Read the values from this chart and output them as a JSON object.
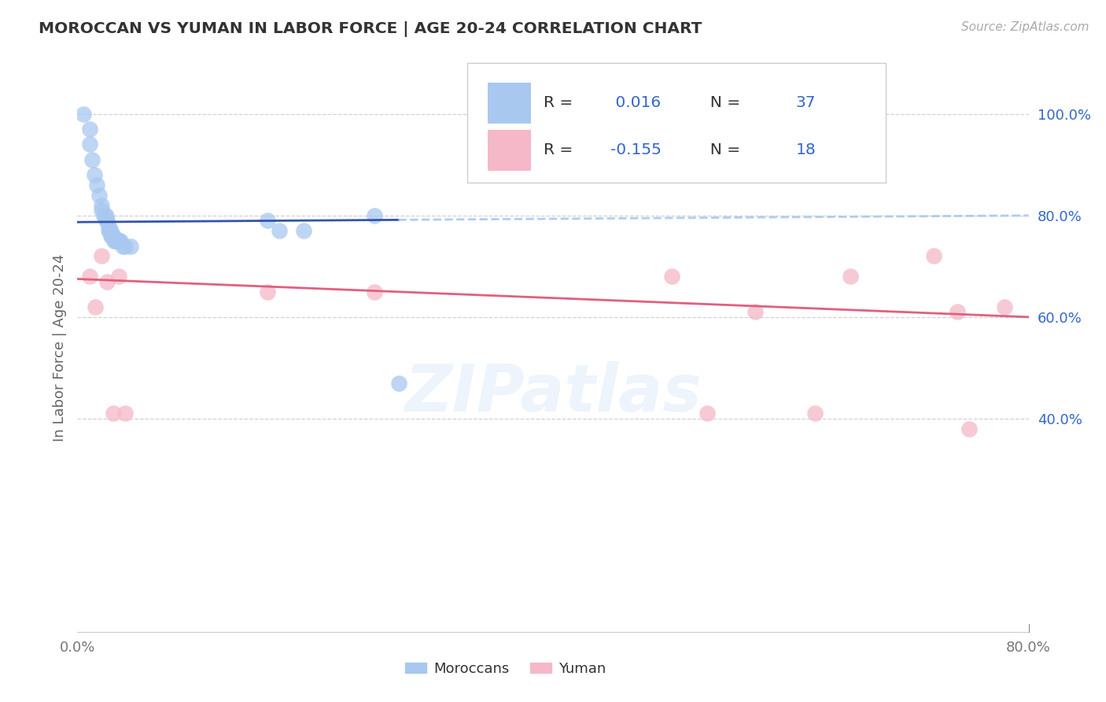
{
  "title": "MOROCCAN VS YUMAN IN LABOR FORCE | AGE 20-24 CORRELATION CHART",
  "source_text": "Source: ZipAtlas.com",
  "ylabel": "In Labor Force | Age 20-24",
  "xlim": [
    0.0,
    0.8
  ],
  "ylim": [
    -0.02,
    1.1
  ],
  "x_ticks": [
    0.0,
    0.8
  ],
  "x_tick_labels": [
    "0.0%",
    "80.0%"
  ],
  "y_ticks": [
    0.4,
    0.6,
    0.8,
    1.0
  ],
  "y_tick_labels": [
    "40.0%",
    "60.0%",
    "80.0%",
    "100.0%"
  ],
  "moroccan_x": [
    0.005,
    0.01,
    0.01,
    0.012,
    0.014,
    0.016,
    0.018,
    0.02,
    0.02,
    0.022,
    0.023,
    0.024,
    0.024,
    0.025,
    0.026,
    0.026,
    0.027,
    0.028,
    0.028,
    0.029,
    0.03,
    0.03,
    0.031,
    0.032,
    0.033,
    0.034,
    0.035,
    0.035,
    0.036,
    0.038,
    0.04,
    0.045,
    0.16,
    0.17,
    0.19,
    0.25,
    0.27
  ],
  "moroccan_y": [
    1.0,
    0.97,
    0.94,
    0.91,
    0.88,
    0.86,
    0.84,
    0.82,
    0.81,
    0.8,
    0.8,
    0.8,
    0.79,
    0.79,
    0.78,
    0.77,
    0.77,
    0.77,
    0.76,
    0.76,
    0.76,
    0.76,
    0.75,
    0.75,
    0.75,
    0.75,
    0.75,
    0.75,
    0.75,
    0.74,
    0.74,
    0.74,
    0.79,
    0.77,
    0.77,
    0.8,
    0.47
  ],
  "yuman_x": [
    0.01,
    0.015,
    0.02,
    0.025,
    0.03,
    0.035,
    0.04,
    0.16,
    0.25,
    0.5,
    0.53,
    0.57,
    0.62,
    0.65,
    0.72,
    0.74,
    0.75,
    0.78
  ],
  "yuman_y": [
    0.68,
    0.62,
    0.72,
    0.67,
    0.41,
    0.68,
    0.41,
    0.65,
    0.65,
    0.68,
    0.41,
    0.61,
    0.41,
    0.68,
    0.72,
    0.61,
    0.38,
    0.62
  ],
  "moroccan_color": "#A8C8F0",
  "yuman_color": "#F5B8C8",
  "moroccan_line_color": "#3355AA",
  "moroccan_line_solid_end": 0.27,
  "yuman_line_color": "#E06080",
  "moroccan_r": 0.016,
  "moroccan_n": 37,
  "yuman_r": -0.155,
  "yuman_n": 18,
  "watermark_text": "ZIPatlas",
  "watermark_color": "#AACCEE",
  "grid_color": "#CCCCCC",
  "title_color": "#333333",
  "source_color": "#AAAAAA",
  "background_color": "#FFFFFF",
  "legend_blue_text_color": "#3366CC",
  "legend_box_edge_color": "#CCCCCC"
}
